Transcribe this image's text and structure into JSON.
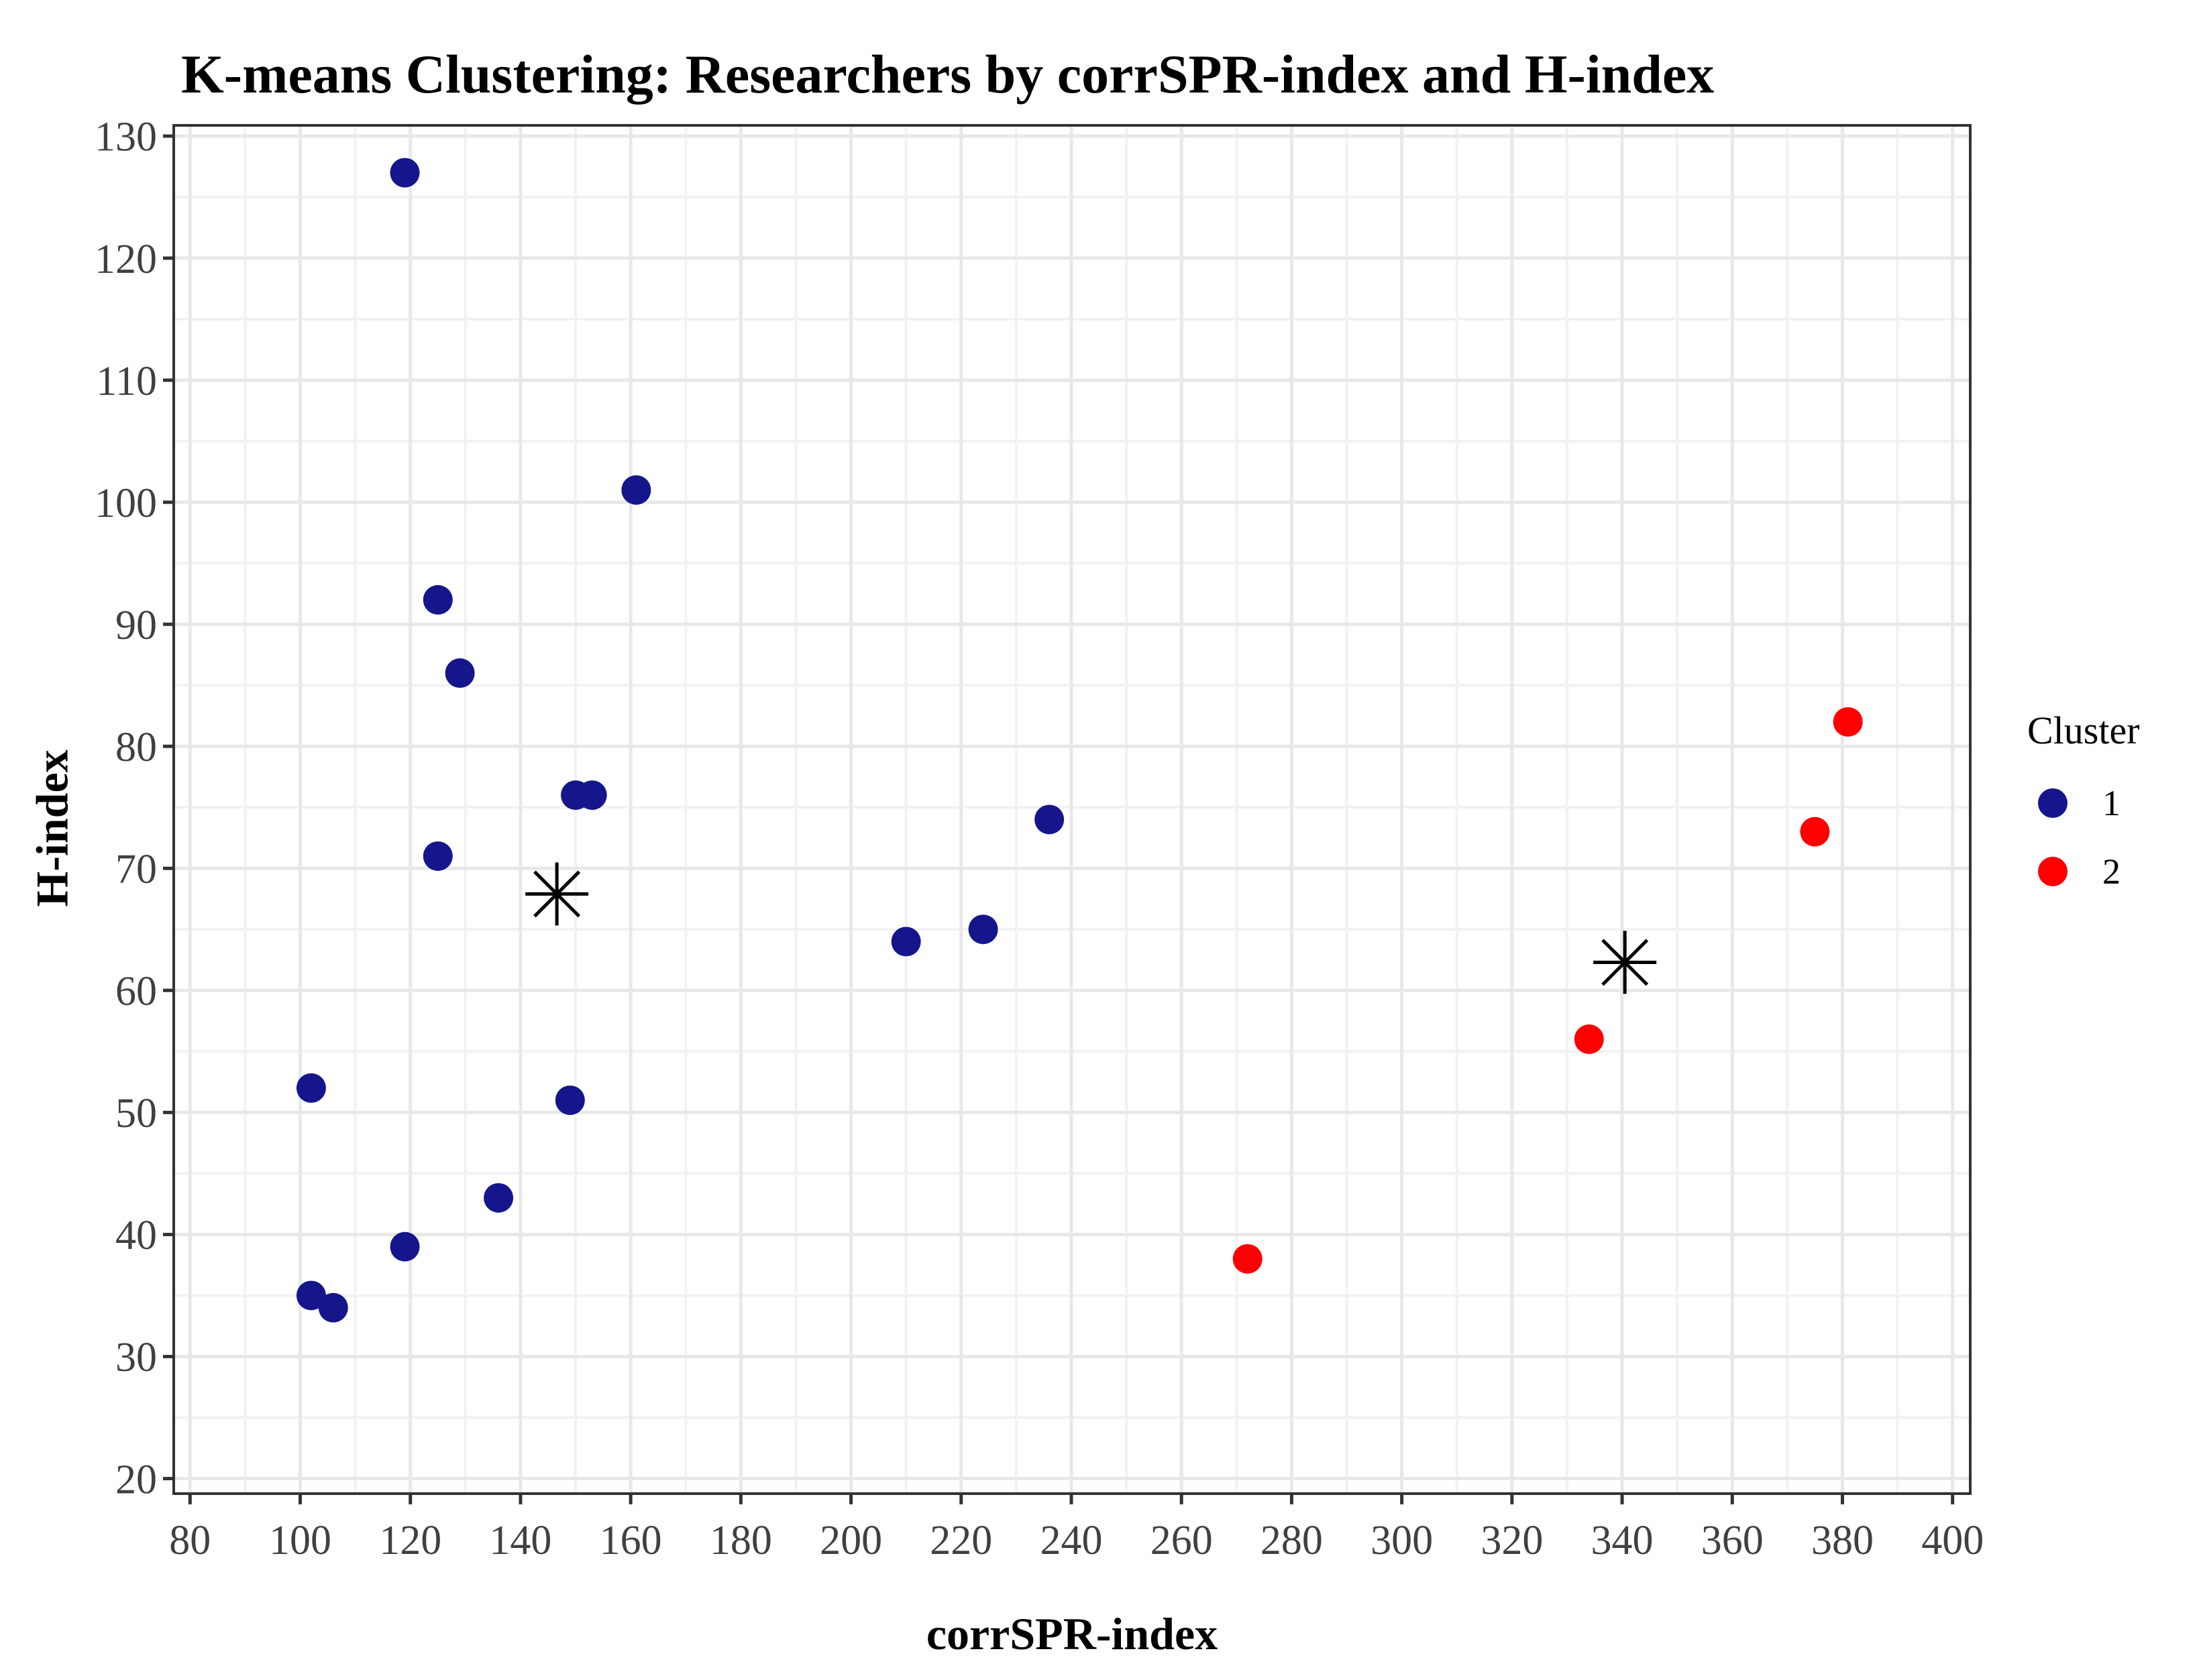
{
  "header": {
    "title": "K-means Clustering: Researchers by corrSPR-index and H-index"
  },
  "axes": {
    "x": {
      "label": "corrSPR-index",
      "tick_labels": [
        "80",
        "100",
        "120",
        "140",
        "160",
        "180",
        "200",
        "220",
        "240",
        "260",
        "280",
        "300",
        "320",
        "340",
        "360",
        "380",
        "400"
      ]
    },
    "y": {
      "label": "H-index",
      "tick_labels": [
        "20",
        "30",
        "40",
        "50",
        "60",
        "70",
        "80",
        "90",
        "100",
        "110",
        "120",
        "130"
      ]
    }
  },
  "legend": {
    "title": "Cluster",
    "items": [
      {
        "label": "1",
        "color": "#15158C"
      },
      {
        "label": "2",
        "color": "#FF0000"
      }
    ]
  },
  "colors": {
    "cluster1": "#15158C",
    "cluster2": "#FF0000",
    "centroid": "#000000",
    "grid_major": "#E8E8E8",
    "grid_minor": "#F2F2F2",
    "panel_border": "#333333",
    "tick_mark": "#333333",
    "tick_label": "#404040",
    "panel_background": "#FFFFFF"
  },
  "chart_data": {
    "type": "scatter",
    "title": "K-means Clustering: Researchers by corrSPR-index and H-index",
    "xlabel": "corrSPR-index",
    "ylabel": "H-index",
    "xlim": [
      80,
      400
    ],
    "ylim": [
      20,
      130
    ],
    "x_ticks": [
      80,
      100,
      120,
      140,
      160,
      180,
      200,
      220,
      240,
      260,
      280,
      300,
      320,
      340,
      360,
      380,
      400
    ],
    "y_ticks": [
      20,
      30,
      40,
      50,
      60,
      70,
      80,
      90,
      100,
      110,
      120,
      130
    ],
    "x_minor_step": 10,
    "y_minor_step": 5,
    "grid": true,
    "legend_position": "right",
    "series": [
      {
        "name": "1",
        "marker": "circle",
        "color": "#15158C",
        "points": [
          [
            119,
            127
          ],
          [
            161,
            101
          ],
          [
            125,
            92
          ],
          [
            129,
            86
          ],
          [
            150,
            76
          ],
          [
            153,
            76
          ],
          [
            125,
            71
          ],
          [
            236,
            74
          ],
          [
            224,
            65
          ],
          [
            210,
            64
          ],
          [
            102,
            52
          ],
          [
            149,
            51
          ],
          [
            136,
            43
          ],
          [
            119,
            39
          ],
          [
            102,
            35
          ],
          [
            106,
            34
          ]
        ]
      },
      {
        "name": "2",
        "marker": "circle",
        "color": "#FF0000",
        "points": [
          [
            272,
            38
          ],
          [
            334,
            56
          ],
          [
            375,
            73
          ],
          [
            381,
            82
          ]
        ]
      },
      {
        "name": "centroids",
        "marker": "asterisk",
        "color": "#000000",
        "points": [
          [
            146.6,
            67.9
          ],
          [
            340.5,
            62.3
          ]
        ]
      }
    ]
  }
}
